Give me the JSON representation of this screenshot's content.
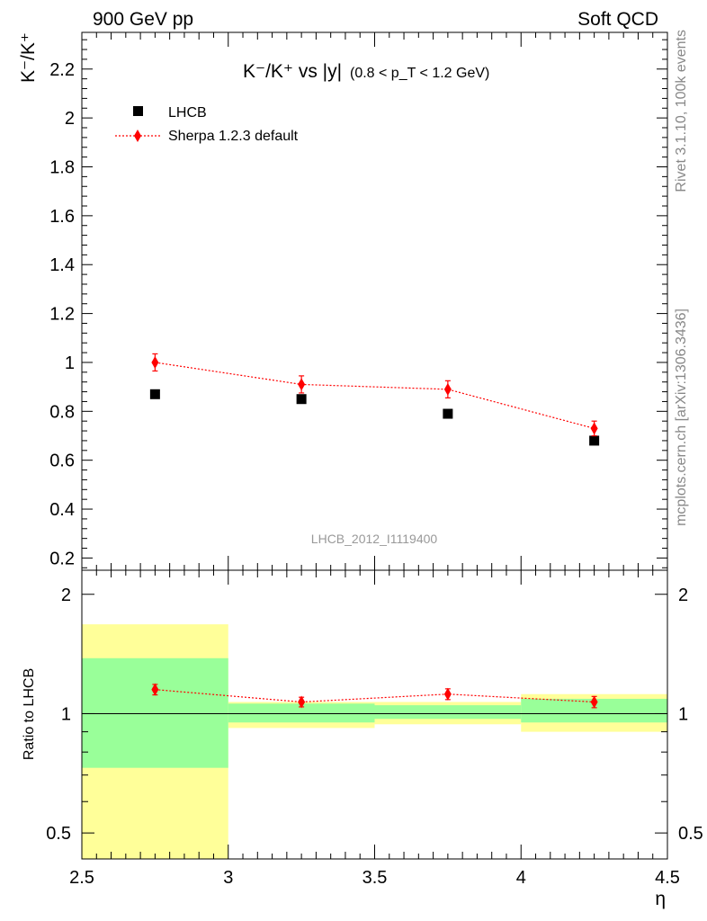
{
  "header": {
    "left": "900 GeV pp",
    "right": "Soft QCD"
  },
  "side": {
    "rivet": "Rivet 3.1.10,  100k events",
    "site": "mcplots.cern.ch [arXiv:1306.3436]"
  },
  "chart_data": [
    {
      "type": "scatter",
      "title_main": "K⁻/K⁺ vs |y|",
      "title_cut": "(0.8 < p_T < 1.2 GeV)",
      "ylabel": "K⁻/K⁺",
      "xlim": [
        2.5,
        4.5
      ],
      "ylim": [
        0.15,
        2.35
      ],
      "yticks": [
        0.2,
        0.4,
        0.6,
        0.8,
        1,
        1.2,
        1.4,
        1.6,
        1.8,
        2,
        2.2
      ],
      "watermark": "LHCB_2012_I1119400",
      "legend": {
        "position": "top-left"
      },
      "series": [
        {
          "name": "LHCB",
          "color": "#000000",
          "marker": "square",
          "x": [
            2.75,
            3.25,
            3.75,
            4.25
          ],
          "y": [
            0.87,
            0.85,
            0.79,
            0.68
          ]
        },
        {
          "name": "Sherpa 1.2.3 default",
          "color": "#ff0000",
          "marker": "diamond",
          "line": "dotted",
          "x": [
            2.75,
            3.25,
            3.75,
            4.25
          ],
          "y": [
            1.0,
            0.91,
            0.89,
            0.73
          ],
          "yerr": [
            0.035,
            0.035,
            0.035,
            0.03
          ]
        }
      ]
    },
    {
      "type": "scatter",
      "ylabel": "Ratio to LHCB",
      "xlabel": "η",
      "xlim": [
        2.5,
        4.5
      ],
      "ylim": [
        0.43,
        2.3
      ],
      "log_y": true,
      "yticks": [
        0.5,
        1,
        2
      ],
      "xticks": [
        2.5,
        3,
        3.5,
        4,
        4.5
      ],
      "bin_edges": [
        2.5,
        3.0,
        3.5,
        4.0,
        4.5
      ],
      "band_inner": {
        "color": "#99ff99",
        "lo": [
          0.73,
          0.95,
          0.97,
          0.95
        ],
        "hi": [
          1.38,
          1.06,
          1.05,
          1.09
        ]
      },
      "band_outer": {
        "color": "#ffff99",
        "lo": [
          0.43,
          0.92,
          0.94,
          0.9
        ],
        "hi": [
          1.68,
          1.07,
          1.07,
          1.12
        ]
      },
      "series": [
        {
          "name": "Sherpa 1.2.3 default",
          "color": "#ff0000",
          "marker": "diamond",
          "line": "dotted",
          "x": [
            2.75,
            3.25,
            3.75,
            4.25
          ],
          "y": [
            1.15,
            1.07,
            1.12,
            1.07
          ],
          "yerr": [
            0.035,
            0.03,
            0.035,
            0.035
          ]
        }
      ]
    }
  ]
}
